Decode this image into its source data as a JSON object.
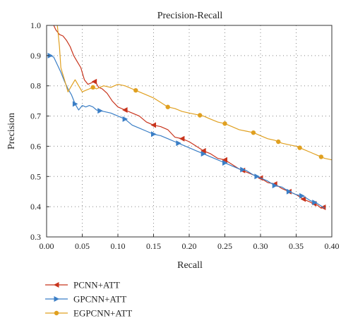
{
  "chart_data": {
    "type": "line",
    "title": "Precision-Recall",
    "xlabel": "Recall",
    "ylabel": "Precision",
    "xlim": [
      0.0,
      0.4
    ],
    "ylim": [
      0.3,
      1.0
    ],
    "x_ticks": [
      "0.00",
      "0.05",
      "0.10",
      "0.15",
      "0.20",
      "0.25",
      "0.30",
      "0.35",
      "0.40"
    ],
    "y_ticks": [
      "0.3",
      "0.4",
      "0.5",
      "0.6",
      "0.7",
      "0.8",
      "0.9",
      "1.0"
    ],
    "grid": "dotted",
    "legend_position": "bottom-left",
    "series": [
      {
        "name": "PCNN+ATT",
        "color": "#c8341c",
        "marker": "left-triangle",
        "points": [
          [
            0.01,
            1.0
          ],
          [
            0.013,
            0.985
          ],
          [
            0.018,
            0.97
          ],
          [
            0.023,
            0.965
          ],
          [
            0.028,
            0.95
          ],
          [
            0.033,
            0.93
          ],
          [
            0.038,
            0.9
          ],
          [
            0.043,
            0.88
          ],
          [
            0.048,
            0.86
          ],
          [
            0.053,
            0.82
          ],
          [
            0.058,
            0.805
          ],
          [
            0.063,
            0.81
          ],
          [
            0.068,
            0.815
          ],
          [
            0.073,
            0.795
          ],
          [
            0.078,
            0.79
          ],
          [
            0.085,
            0.775
          ],
          [
            0.092,
            0.75
          ],
          [
            0.1,
            0.73
          ],
          [
            0.11,
            0.72
          ],
          [
            0.12,
            0.71
          ],
          [
            0.13,
            0.7
          ],
          [
            0.14,
            0.68
          ],
          [
            0.15,
            0.67
          ],
          [
            0.16,
            0.665
          ],
          [
            0.17,
            0.655
          ],
          [
            0.18,
            0.63
          ],
          [
            0.19,
            0.625
          ],
          [
            0.2,
            0.615
          ],
          [
            0.21,
            0.6
          ],
          [
            0.22,
            0.585
          ],
          [
            0.23,
            0.575
          ],
          [
            0.24,
            0.56
          ],
          [
            0.25,
            0.555
          ],
          [
            0.26,
            0.54
          ],
          [
            0.27,
            0.525
          ],
          [
            0.28,
            0.515
          ],
          [
            0.29,
            0.505
          ],
          [
            0.3,
            0.495
          ],
          [
            0.31,
            0.48
          ],
          [
            0.32,
            0.475
          ],
          [
            0.33,
            0.46
          ],
          [
            0.34,
            0.45
          ],
          [
            0.35,
            0.44
          ],
          [
            0.36,
            0.425
          ],
          [
            0.37,
            0.415
          ],
          [
            0.38,
            0.405
          ],
          [
            0.385,
            0.395
          ],
          [
            0.39,
            0.4
          ]
        ],
        "markers_at_x": [
          0.067,
          0.11,
          0.15,
          0.19,
          0.22,
          0.25,
          0.275,
          0.3,
          0.32,
          0.34,
          0.36,
          0.375,
          0.388
        ]
      },
      {
        "name": "GPCNN+ATT",
        "color": "#3a7ec6",
        "marker": "right-triangle",
        "points": [
          [
            0.0,
            0.9
          ],
          [
            0.005,
            0.9
          ],
          [
            0.01,
            0.895
          ],
          [
            0.015,
            0.87
          ],
          [
            0.02,
            0.845
          ],
          [
            0.025,
            0.815
          ],
          [
            0.03,
            0.79
          ],
          [
            0.035,
            0.77
          ],
          [
            0.04,
            0.74
          ],
          [
            0.045,
            0.72
          ],
          [
            0.05,
            0.735
          ],
          [
            0.055,
            0.73
          ],
          [
            0.06,
            0.735
          ],
          [
            0.065,
            0.73
          ],
          [
            0.07,
            0.72
          ],
          [
            0.08,
            0.715
          ],
          [
            0.09,
            0.71
          ],
          [
            0.1,
            0.7
          ],
          [
            0.11,
            0.69
          ],
          [
            0.12,
            0.67
          ],
          [
            0.13,
            0.66
          ],
          [
            0.14,
            0.65
          ],
          [
            0.15,
            0.64
          ],
          [
            0.16,
            0.635
          ],
          [
            0.17,
            0.625
          ],
          [
            0.18,
            0.615
          ],
          [
            0.19,
            0.605
          ],
          [
            0.2,
            0.595
          ],
          [
            0.21,
            0.585
          ],
          [
            0.22,
            0.575
          ],
          [
            0.23,
            0.565
          ],
          [
            0.24,
            0.555
          ],
          [
            0.25,
            0.545
          ],
          [
            0.26,
            0.535
          ],
          [
            0.27,
            0.525
          ],
          [
            0.28,
            0.52
          ],
          [
            0.29,
            0.505
          ],
          [
            0.3,
            0.495
          ],
          [
            0.31,
            0.485
          ],
          [
            0.32,
            0.47
          ],
          [
            0.33,
            0.465
          ],
          [
            0.34,
            0.45
          ],
          [
            0.35,
            0.44
          ],
          [
            0.36,
            0.435
          ],
          [
            0.37,
            0.42
          ],
          [
            0.38,
            0.41
          ],
          [
            0.39,
            0.395
          ]
        ],
        "markers_at_x": [
          0.005,
          0.04,
          0.075,
          0.11,
          0.15,
          0.185,
          0.22,
          0.25,
          0.275,
          0.295,
          0.32,
          0.34,
          0.358,
          0.376
        ]
      },
      {
        "name": "EGPCNN+ATT",
        "color": "#e0a020",
        "marker": "circle",
        "points": [
          [
            0.015,
            1.0
          ],
          [
            0.018,
            0.93
          ],
          [
            0.02,
            0.86
          ],
          [
            0.025,
            0.82
          ],
          [
            0.03,
            0.78
          ],
          [
            0.035,
            0.8
          ],
          [
            0.04,
            0.82
          ],
          [
            0.045,
            0.8
          ],
          [
            0.05,
            0.78
          ],
          [
            0.055,
            0.785
          ],
          [
            0.06,
            0.79
          ],
          [
            0.065,
            0.795
          ],
          [
            0.07,
            0.79
          ],
          [
            0.08,
            0.8
          ],
          [
            0.09,
            0.795
          ],
          [
            0.1,
            0.805
          ],
          [
            0.11,
            0.8
          ],
          [
            0.12,
            0.79
          ],
          [
            0.13,
            0.78
          ],
          [
            0.14,
            0.77
          ],
          [
            0.15,
            0.76
          ],
          [
            0.16,
            0.745
          ],
          [
            0.17,
            0.73
          ],
          [
            0.18,
            0.725
          ],
          [
            0.19,
            0.715
          ],
          [
            0.2,
            0.71
          ],
          [
            0.21,
            0.705
          ],
          [
            0.22,
            0.7
          ],
          [
            0.23,
            0.69
          ],
          [
            0.24,
            0.68
          ],
          [
            0.25,
            0.675
          ],
          [
            0.26,
            0.665
          ],
          [
            0.27,
            0.655
          ],
          [
            0.28,
            0.65
          ],
          [
            0.29,
            0.645
          ],
          [
            0.3,
            0.635
          ],
          [
            0.31,
            0.625
          ],
          [
            0.32,
            0.62
          ],
          [
            0.33,
            0.61
          ],
          [
            0.34,
            0.605
          ],
          [
            0.35,
            0.6
          ],
          [
            0.36,
            0.59
          ],
          [
            0.37,
            0.58
          ],
          [
            0.38,
            0.57
          ],
          [
            0.39,
            0.56
          ],
          [
            0.4,
            0.555
          ]
        ],
        "markers_at_x": [
          0.065,
          0.125,
          0.17,
          0.215,
          0.25,
          0.29,
          0.325,
          0.355,
          0.385
        ]
      }
    ]
  }
}
